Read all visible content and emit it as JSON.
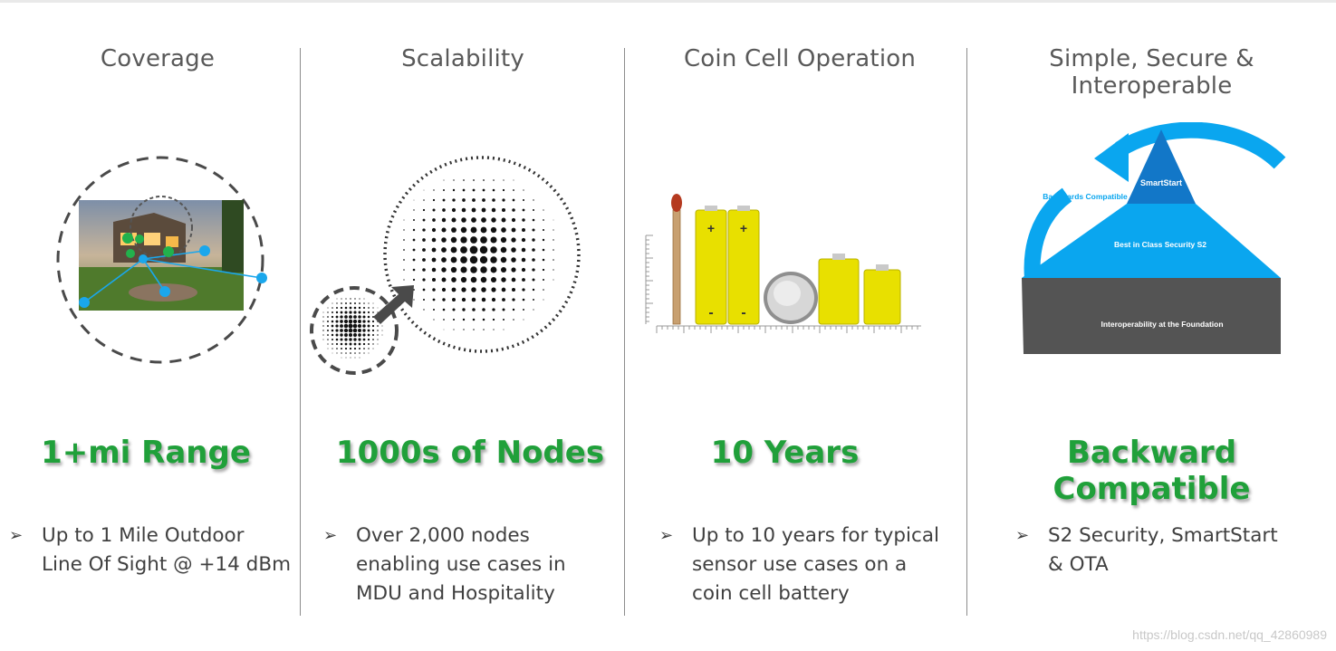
{
  "columns": [
    {
      "title": "Coverage",
      "headline": "1+mi Range",
      "bullet": "Up to 1 Mile Outdoor\nLine Of Sight @ +14 dBm"
    },
    {
      "title": "Scalability",
      "headline": "1000s of Nodes",
      "bullet": "Over 2,000 nodes\nenabling use cases in\nMDU and Hospitality"
    },
    {
      "title": "Coin Cell Operation",
      "headline": "10 Years",
      "bullet": "Up to 10 years for typical\nsensor use cases on a\ncoin cell battery"
    },
    {
      "title": "Simple, Secure & Interoperable",
      "headline": "Backward Compatible",
      "bullet": "S2 Security, SmartStart\n& OTA"
    }
  ],
  "battery_labels": {
    "plus": "+",
    "minus": "-"
  },
  "pyramid": {
    "top": "SmartStart",
    "middle": "Best in Class Security S2",
    "bottom": "Interoperability at the Foundation",
    "arrow_label": "Backwards Compatible"
  },
  "bullet_glyph": "➢",
  "watermark": "https://blog.csdn.net/qq_42860989",
  "colors": {
    "headline_green": "#20a03a",
    "pyramid_blue": "#0aa6ef",
    "pyramid_dark_blue": "#1277c8",
    "pyramid_gray": "#545454",
    "battery_yellow": "#e8e000",
    "network_node_green": "#22b14c",
    "network_link_blue": "#1aa7ec"
  }
}
